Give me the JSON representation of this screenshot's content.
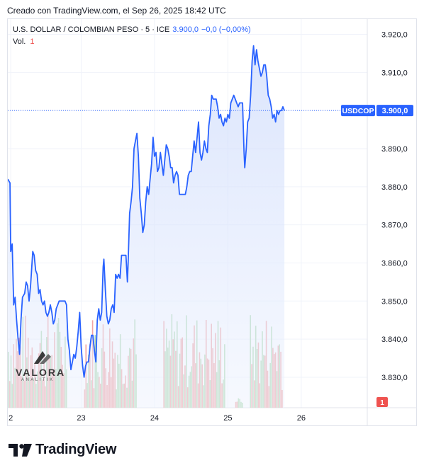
{
  "header": {
    "created": "Creado con TradingView.com, el Sep 26, 2025 18:42 UTC"
  },
  "legend": {
    "symbol": "U.S. DOLLAR / COLOMBIAN PESO · 5 · ICE",
    "value": "3.900,0",
    "change": "−0,0 (−0,00%)",
    "volume_label": "Vol.",
    "volume_value": "1"
  },
  "price_badge": {
    "symbol": "USDCOP",
    "value": "3.900,0"
  },
  "volume_badge": "1",
  "watermark": {
    "name": "VALORA",
    "sub": "ANALITIK"
  },
  "footer": {
    "brand": "TradingView"
  },
  "colors": {
    "line": "#2962ff",
    "area_top": "#c7d6fb",
    "area_bottom": "#eef3fe",
    "vol_up": "#a5d6a7",
    "vol_down": "#ef9a9a",
    "badge": "#2962ff"
  },
  "chart_data": {
    "type": "area",
    "symbol": "USDCOP",
    "y_ticks": [
      "3.920,0",
      "3.910,0",
      "3.900,0",
      "3.890,0",
      "3.880,0",
      "3.870,0",
      "3.860,0",
      "3.850,0",
      "3.840,0",
      "3.830,0"
    ],
    "x_ticks": [
      "2",
      "23",
      "24",
      "25",
      "26"
    ],
    "ylim": [
      3822,
      3924
    ],
    "xlim": [
      0,
      4.9
    ],
    "grid": true,
    "last_price": 3900.0,
    "series": [
      {
        "values": [
          [
            0.0,
            3882
          ],
          [
            0.03,
            3881
          ],
          [
            0.04,
            3863
          ],
          [
            0.06,
            3865
          ],
          [
            0.08,
            3849
          ],
          [
            0.1,
            3851
          ],
          [
            0.12,
            3845
          ],
          [
            0.14,
            3840
          ],
          [
            0.16,
            3836
          ],
          [
            0.18,
            3845
          ],
          [
            0.2,
            3851
          ],
          [
            0.23,
            3852
          ],
          [
            0.25,
            3855
          ],
          [
            0.27,
            3854
          ],
          [
            0.29,
            3850
          ],
          [
            0.31,
            3854
          ],
          [
            0.34,
            3863
          ],
          [
            0.36,
            3862
          ],
          [
            0.38,
            3858
          ],
          [
            0.4,
            3857
          ],
          [
            0.42,
            3852
          ],
          [
            0.44,
            3853
          ],
          [
            0.46,
            3850
          ],
          [
            0.48,
            3849
          ],
          [
            0.5,
            3850
          ],
          [
            0.52,
            3847
          ],
          [
            0.54,
            3846
          ],
          [
            0.56,
            3847
          ],
          [
            0.58,
            3849
          ],
          [
            0.6,
            3847
          ],
          [
            0.62,
            3844
          ],
          [
            0.64,
            3845
          ],
          [
            0.66,
            3848
          ],
          [
            0.68,
            3849
          ],
          [
            0.7,
            3850
          ],
          [
            0.72,
            3850
          ],
          [
            0.74,
            3850
          ],
          [
            0.76,
            3850
          ],
          [
            0.78,
            3850
          ],
          [
            0.8,
            3849
          ],
          [
            0.82,
            3840
          ],
          [
            0.84,
            3837
          ],
          [
            0.86,
            3832
          ],
          [
            0.88,
            3834
          ],
          [
            0.9,
            3836
          ],
          [
            0.92,
            3835
          ],
          [
            0.94,
            3838
          ],
          [
            0.96,
            3842
          ],
          [
            0.98,
            3847
          ],
          [
            1.0,
            3838
          ],
          [
            1.02,
            3833
          ],
          [
            1.04,
            3830
          ],
          [
            1.06,
            3833
          ],
          [
            1.08,
            3834
          ],
          [
            1.1,
            3834
          ],
          [
            1.12,
            3838
          ],
          [
            1.14,
            3841
          ],
          [
            1.16,
            3841
          ],
          [
            1.18,
            3837
          ],
          [
            1.2,
            3834
          ],
          [
            1.22,
            3845
          ],
          [
            1.24,
            3848
          ],
          [
            1.26,
            3845
          ],
          [
            1.28,
            3847
          ],
          [
            1.3,
            3859
          ],
          [
            1.31,
            3861
          ],
          [
            1.33,
            3853
          ],
          [
            1.35,
            3846
          ],
          [
            1.37,
            3844
          ],
          [
            1.39,
            3845
          ],
          [
            1.41,
            3848
          ],
          [
            1.43,
            3849
          ],
          [
            1.45,
            3847
          ],
          [
            1.47,
            3857
          ],
          [
            1.49,
            3856
          ],
          [
            1.51,
            3857
          ],
          [
            1.53,
            3856
          ],
          [
            1.55,
            3862
          ],
          [
            1.57,
            3862
          ],
          [
            1.59,
            3862
          ],
          [
            1.61,
            3862
          ],
          [
            1.63,
            3855
          ],
          [
            1.64,
            3860
          ],
          [
            1.66,
            3873
          ],
          [
            1.68,
            3876
          ],
          [
            1.7,
            3880
          ],
          [
            1.72,
            3890
          ],
          [
            1.74,
            3892
          ],
          [
            1.76,
            3894
          ],
          [
            1.78,
            3888
          ],
          [
            1.8,
            3877
          ],
          [
            1.82,
            3873
          ],
          [
            1.84,
            3868
          ],
          [
            1.86,
            3870
          ],
          [
            1.88,
            3876
          ],
          [
            1.9,
            3880
          ],
          [
            1.92,
            3878
          ],
          [
            1.94,
            3882
          ],
          [
            1.96,
            3886
          ],
          [
            1.98,
            3893
          ],
          [
            2.0,
            3888
          ],
          [
            2.02,
            3889
          ],
          [
            2.04,
            3884
          ],
          [
            2.06,
            3885
          ],
          [
            2.08,
            3889
          ],
          [
            2.1,
            3886
          ],
          [
            2.12,
            3883
          ],
          [
            2.14,
            3887
          ],
          [
            2.16,
            3891
          ],
          [
            2.18,
            3890
          ],
          [
            2.2,
            3888
          ],
          [
            2.22,
            3885
          ],
          [
            2.24,
            3885
          ],
          [
            2.26,
            3881
          ],
          [
            2.28,
            3883
          ],
          [
            2.3,
            3884
          ],
          [
            2.32,
            3883
          ],
          [
            2.34,
            3878
          ],
          [
            2.36,
            3878
          ],
          [
            2.38,
            3878
          ],
          [
            2.4,
            3878
          ],
          [
            2.42,
            3878
          ],
          [
            2.44,
            3880
          ],
          [
            2.46,
            3883
          ],
          [
            2.48,
            3884
          ],
          [
            2.5,
            3884
          ],
          [
            2.52,
            3888
          ],
          [
            2.54,
            3892
          ],
          [
            2.56,
            3889
          ],
          [
            2.58,
            3893
          ],
          [
            2.6,
            3897
          ],
          [
            2.62,
            3889
          ],
          [
            2.64,
            3887
          ],
          [
            2.66,
            3889
          ],
          [
            2.68,
            3892
          ],
          [
            2.7,
            3890
          ],
          [
            2.72,
            3889
          ],
          [
            2.74,
            3896
          ],
          [
            2.76,
            3899
          ],
          [
            2.78,
            3904
          ],
          [
            2.8,
            3903
          ],
          [
            2.82,
            3903
          ],
          [
            2.84,
            3903
          ],
          [
            2.86,
            3901
          ],
          [
            2.88,
            3898
          ],
          [
            2.9,
            3899
          ],
          [
            2.92,
            3897
          ],
          [
            2.94,
            3896
          ],
          [
            2.96,
            3898
          ],
          [
            2.98,
            3897
          ],
          [
            3.0,
            3899
          ],
          [
            3.02,
            3898
          ],
          [
            3.04,
            3902
          ],
          [
            3.06,
            3903
          ],
          [
            3.08,
            3904
          ],
          [
            3.1,
            3903
          ],
          [
            3.12,
            3902
          ],
          [
            3.14,
            3901
          ],
          [
            3.16,
            3902
          ],
          [
            3.18,
            3902
          ],
          [
            3.2,
            3902
          ],
          [
            3.22,
            3889
          ],
          [
            3.23,
            3885
          ],
          [
            3.25,
            3890
          ],
          [
            3.27,
            3897
          ],
          [
            3.29,
            3898
          ],
          [
            3.31,
            3904
          ],
          [
            3.33,
            3913
          ],
          [
            3.35,
            3917
          ],
          [
            3.37,
            3912
          ],
          [
            3.39,
            3916
          ],
          [
            3.41,
            3913
          ],
          [
            3.43,
            3911
          ],
          [
            3.45,
            3909
          ],
          [
            3.47,
            3910
          ],
          [
            3.49,
            3912
          ],
          [
            3.51,
            3912
          ],
          [
            3.53,
            3909
          ],
          [
            3.55,
            3904
          ],
          [
            3.57,
            3903
          ],
          [
            3.59,
            3901
          ],
          [
            3.61,
            3898
          ],
          [
            3.63,
            3899
          ],
          [
            3.65,
            3897
          ],
          [
            3.67,
            3900
          ],
          [
            3.69,
            3899
          ],
          [
            3.71,
            3900
          ],
          [
            3.73,
            3900
          ],
          [
            3.75,
            3901
          ],
          [
            3.77,
            3900
          ]
        ]
      }
    ],
    "volume": {
      "ylim": [
        0,
        1
      ]
    }
  }
}
